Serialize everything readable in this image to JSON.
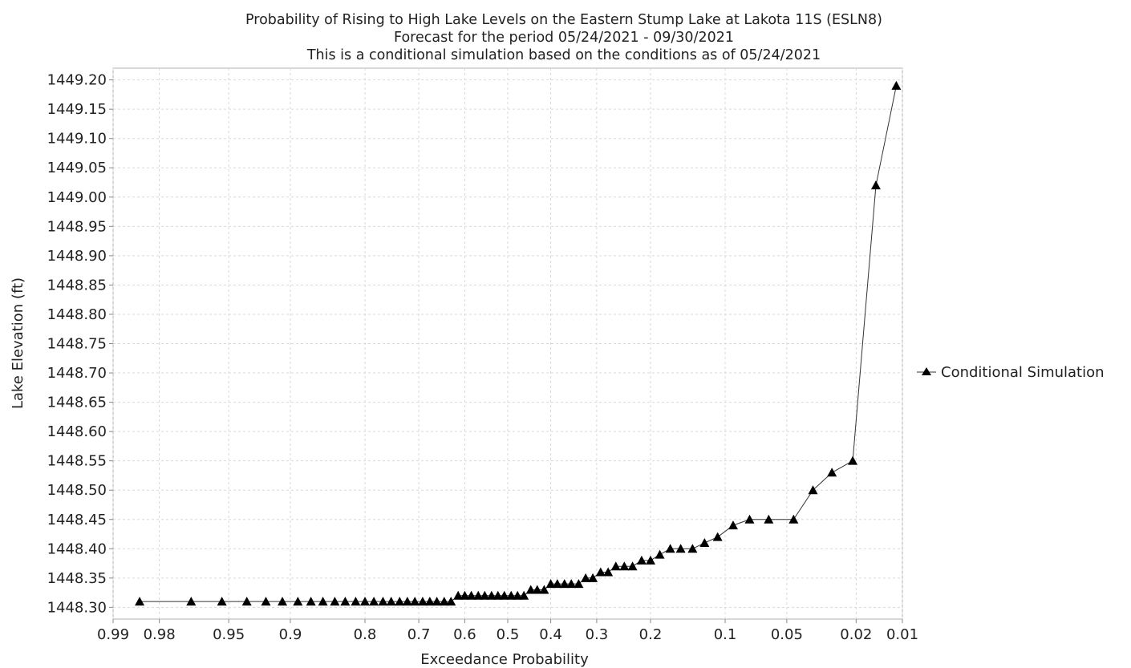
{
  "chart_data": {
    "type": "line",
    "title_lines": [
      "Probability of Rising to High Lake Levels on the Eastern Stump Lake at Lakota 11S (ESLN8)",
      "Forecast for the period 05/24/2021 - 09/30/2021",
      "This is a conditional simulation based on the conditions as of 05/24/2021"
    ],
    "xlabel": "Exceedance Probability",
    "ylabel": "Lake Elevation (ft)",
    "x_scale": "normal-probability",
    "x_range": [
      0.99,
      0.01
    ],
    "x_ticks": [
      {
        "value": 0.99,
        "label": "0.99"
      },
      {
        "value": 0.98,
        "label": "0.98"
      },
      {
        "value": 0.95,
        "label": "0.95"
      },
      {
        "value": 0.9,
        "label": "0.9"
      },
      {
        "value": 0.8,
        "label": "0.8"
      },
      {
        "value": 0.7,
        "label": "0.7"
      },
      {
        "value": 0.6,
        "label": "0.6"
      },
      {
        "value": 0.5,
        "label": "0.5"
      },
      {
        "value": 0.4,
        "label": "0.4"
      },
      {
        "value": 0.3,
        "label": "0.3"
      },
      {
        "value": 0.2,
        "label": "0.2"
      },
      {
        "value": 0.1,
        "label": "0.1"
      },
      {
        "value": 0.05,
        "label": "0.05"
      },
      {
        "value": 0.02,
        "label": "0.02"
      },
      {
        "value": 0.01,
        "label": "0.01"
      }
    ],
    "y_range": [
      1448.28,
      1449.22
    ],
    "y_ticks": [
      "1448.30",
      "1448.35",
      "1448.40",
      "1448.45",
      "1448.50",
      "1448.55",
      "1448.60",
      "1448.65",
      "1448.70",
      "1448.75",
      "1448.80",
      "1448.85",
      "1448.90",
      "1448.95",
      "1449.00",
      "1449.05",
      "1449.10",
      "1449.15",
      "1449.20"
    ],
    "grid": true,
    "legend_position": "right",
    "series": [
      {
        "name": "Conditional Simulation",
        "marker": "triangle",
        "color": "#000000",
        "points": [
          [
            0.985,
            1448.31
          ],
          [
            0.969,
            1448.31
          ],
          [
            0.954,
            1448.31
          ],
          [
            0.938,
            1448.31
          ],
          [
            0.923,
            1448.31
          ],
          [
            0.908,
            1448.31
          ],
          [
            0.892,
            1448.31
          ],
          [
            0.877,
            1448.31
          ],
          [
            0.862,
            1448.31
          ],
          [
            0.846,
            1448.31
          ],
          [
            0.831,
            1448.31
          ],
          [
            0.815,
            1448.31
          ],
          [
            0.8,
            1448.31
          ],
          [
            0.785,
            1448.31
          ],
          [
            0.769,
            1448.31
          ],
          [
            0.754,
            1448.31
          ],
          [
            0.738,
            1448.31
          ],
          [
            0.723,
            1448.31
          ],
          [
            0.708,
            1448.31
          ],
          [
            0.692,
            1448.31
          ],
          [
            0.677,
            1448.31
          ],
          [
            0.662,
            1448.31
          ],
          [
            0.646,
            1448.31
          ],
          [
            0.631,
            1448.31
          ],
          [
            0.615,
            1448.32
          ],
          [
            0.6,
            1448.32
          ],
          [
            0.585,
            1448.32
          ],
          [
            0.569,
            1448.32
          ],
          [
            0.554,
            1448.32
          ],
          [
            0.538,
            1448.32
          ],
          [
            0.523,
            1448.32
          ],
          [
            0.508,
            1448.32
          ],
          [
            0.492,
            1448.32
          ],
          [
            0.477,
            1448.32
          ],
          [
            0.462,
            1448.32
          ],
          [
            0.446,
            1448.33
          ],
          [
            0.431,
            1448.33
          ],
          [
            0.415,
            1448.33
          ],
          [
            0.4,
            1448.34
          ],
          [
            0.385,
            1448.34
          ],
          [
            0.369,
            1448.34
          ],
          [
            0.354,
            1448.34
          ],
          [
            0.338,
            1448.34
          ],
          [
            0.323,
            1448.35
          ],
          [
            0.308,
            1448.35
          ],
          [
            0.292,
            1448.36
          ],
          [
            0.277,
            1448.36
          ],
          [
            0.262,
            1448.37
          ],
          [
            0.246,
            1448.37
          ],
          [
            0.231,
            1448.37
          ],
          [
            0.215,
            1448.38
          ],
          [
            0.2,
            1448.38
          ],
          [
            0.185,
            1448.39
          ],
          [
            0.169,
            1448.4
          ],
          [
            0.154,
            1448.4
          ],
          [
            0.138,
            1448.4
          ],
          [
            0.123,
            1448.41
          ],
          [
            0.108,
            1448.42
          ],
          [
            0.092,
            1448.44
          ],
          [
            0.077,
            1448.45
          ],
          [
            0.062,
            1448.45
          ],
          [
            0.046,
            1448.45
          ],
          [
            0.036,
            1448.5
          ],
          [
            0.028,
            1448.53
          ],
          [
            0.021,
            1448.55
          ],
          [
            0.015,
            1449.02
          ],
          [
            0.011,
            1449.19
          ]
        ]
      }
    ]
  }
}
